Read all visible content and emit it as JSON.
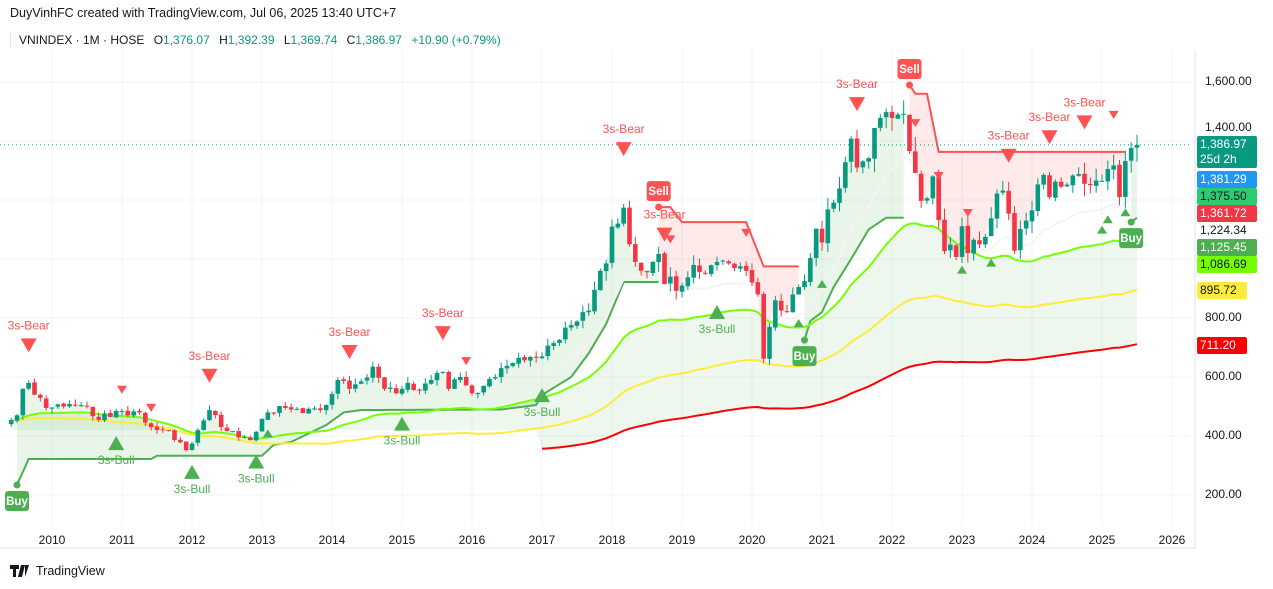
{
  "header": {
    "credit": "DuyVinhFC created with TradingView.com, Jul 06, 2025 13:40 UTC+7",
    "symbol": "VNINDEX · 1M · HOSE",
    "open_label": "O",
    "open": "1,376.07",
    "high_label": "H",
    "high": "1,392.39",
    "low_label": "L",
    "low": "1,369.74",
    "close_label": "C",
    "close": "1,386.97",
    "change": "+10.90 (+0.79%)"
  },
  "price_axis": {
    "ticks": [
      "1,600.00",
      "1,400.00",
      "800.00",
      "600.00",
      "400.00",
      "200.00"
    ],
    "tags": [
      {
        "value": "1,386.97",
        "sub": "25d 2h",
        "color": "#089981",
        "text": "#ffffff"
      },
      {
        "value": "1,381.29",
        "color": "#2196f3",
        "text": "#ffffff"
      },
      {
        "value": "1,375.50",
        "color": "#2ecc71",
        "text": "#131722"
      },
      {
        "value": "1,361.72",
        "color": "#f23645",
        "text": "#ffffff"
      },
      {
        "value": "1,224.34",
        "color": "#ffffff",
        "text": "#131722"
      },
      {
        "value": "1,125.45",
        "color": "#4caf50",
        "text": "#ffffff"
      },
      {
        "value": "1,086.69",
        "color": "#76ff03",
        "text": "#131722"
      },
      {
        "value": "895.72",
        "color": "#ffeb3b",
        "text": "#131722"
      },
      {
        "value": "711.20",
        "color": "#ff0000",
        "text": "#ffffff"
      }
    ]
  },
  "footer": {
    "brand": "TradingView"
  },
  "chart_data": {
    "type": "candlestick",
    "title": "VNINDEX · 1M · HOSE",
    "xlabel": "",
    "ylabel": "",
    "ylim": [
      100,
      1700
    ],
    "x_ticks": [
      "2010",
      "2011",
      "2012",
      "2013",
      "2014",
      "2015",
      "2016",
      "2017",
      "2018",
      "2019",
      "2020",
      "2021",
      "2022",
      "2023",
      "2024",
      "2025",
      "2026"
    ],
    "y_ticks": [
      200,
      400,
      600,
      800,
      1400,
      1600
    ],
    "last_close": 1386.97,
    "colors": {
      "up": "#089981",
      "down": "#f23645",
      "bull": "#4caf50",
      "bear": "#ff5252"
    },
    "monthly_close": [
      [
        "2009-06",
        454
      ],
      [
        "2009-07",
        470
      ],
      [
        "2009-08",
        560
      ],
      [
        "2009-09",
        580
      ],
      [
        "2009-10",
        540
      ],
      [
        "2009-12",
        495
      ],
      [
        "2010-03",
        500
      ],
      [
        "2010-06",
        505
      ],
      [
        "2010-09",
        455
      ],
      [
        "2010-12",
        485
      ],
      [
        "2011-02",
        470
      ],
      [
        "2011-04",
        480
      ],
      [
        "2011-06",
        430
      ],
      [
        "2011-09",
        420
      ],
      [
        "2011-12",
        352
      ],
      [
        "2012-02",
        420
      ],
      [
        "2012-04",
        488
      ],
      [
        "2012-06",
        430
      ],
      [
        "2012-09",
        395
      ],
      [
        "2012-11",
        386
      ],
      [
        "2012-12",
        414
      ],
      [
        "2013-02",
        480
      ],
      [
        "2013-05",
        495
      ],
      [
        "2013-08",
        478
      ],
      [
        "2013-12",
        505
      ],
      [
        "2014-02",
        590
      ],
      [
        "2014-04",
        560
      ],
      [
        "2014-06",
        585
      ],
      [
        "2014-08",
        635
      ],
      [
        "2014-10",
        560
      ],
      [
        "2014-12",
        545
      ],
      [
        "2015-02",
        580
      ],
      [
        "2015-04",
        555
      ],
      [
        "2015-06",
        590
      ],
      [
        "2015-08",
        617
      ],
      [
        "2015-09",
        560
      ],
      [
        "2015-11",
        600
      ],
      [
        "2016-01",
        545
      ],
      [
        "2016-03",
        570
      ],
      [
        "2016-06",
        630
      ],
      [
        "2016-09",
        665
      ],
      [
        "2016-11",
        668
      ],
      [
        "2016-12",
        665
      ],
      [
        "2017-03",
        715
      ],
      [
        "2017-06",
        776
      ],
      [
        "2017-09",
        825
      ],
      [
        "2017-11",
        960
      ],
      [
        "2017-12",
        985
      ],
      [
        "2018-01",
        1110
      ],
      [
        "2018-02",
        1120
      ],
      [
        "2018-03",
        1174
      ],
      [
        "2018-04",
        1050
      ],
      [
        "2018-05",
        990
      ],
      [
        "2018-06",
        960
      ],
      [
        "2018-07",
        955
      ],
      [
        "2018-08",
        990
      ],
      [
        "2018-09",
        1017
      ],
      [
        "2018-10",
        915
      ],
      [
        "2018-11",
        940
      ],
      [
        "2018-12",
        892
      ],
      [
        "2019-01",
        910
      ],
      [
        "2019-03",
        980
      ],
      [
        "2019-05",
        950
      ],
      [
        "2019-07",
        990
      ],
      [
        "2019-09",
        985
      ],
      [
        "2019-11",
        975
      ],
      [
        "2019-12",
        960
      ],
      [
        "2020-01",
        920
      ],
      [
        "2020-02",
        880
      ],
      [
        "2020-03",
        662
      ],
      [
        "2020-04",
        770
      ],
      [
        "2020-05",
        860
      ],
      [
        "2020-06",
        825
      ],
      [
        "2020-07",
        820
      ],
      [
        "2020-08",
        880
      ],
      [
        "2020-09",
        905
      ],
      [
        "2020-10",
        925
      ],
      [
        "2020-11",
        1003
      ],
      [
        "2020-12",
        1103
      ],
      [
        "2021-01",
        1056
      ],
      [
        "2021-02",
        1168
      ],
      [
        "2021-03",
        1191
      ],
      [
        "2021-04",
        1239
      ],
      [
        "2021-05",
        1328
      ],
      [
        "2021-06",
        1408
      ],
      [
        "2021-07",
        1310
      ],
      [
        "2021-08",
        1331
      ],
      [
        "2021-09",
        1342
      ],
      [
        "2021-10",
        1444
      ],
      [
        "2021-11",
        1478
      ],
      [
        "2021-12",
        1498
      ],
      [
        "2022-01",
        1478
      ],
      [
        "2022-02",
        1490
      ],
      [
        "2022-03",
        1492
      ],
      [
        "2022-04",
        1366
      ],
      [
        "2022-05",
        1292
      ],
      [
        "2022-06",
        1197
      ],
      [
        "2022-07",
        1206
      ],
      [
        "2022-08",
        1280
      ],
      [
        "2022-09",
        1132
      ],
      [
        "2022-10",
        1027
      ],
      [
        "2022-11",
        1049
      ],
      [
        "2022-12",
        1007
      ],
      [
        "2023-01",
        1111
      ],
      [
        "2023-02",
        1020
      ],
      [
        "2023-03",
        1065
      ],
      [
        "2023-04",
        1050
      ],
      [
        "2023-05",
        1075
      ],
      [
        "2023-06",
        1138
      ],
      [
        "2023-07",
        1222
      ],
      [
        "2023-08",
        1232
      ],
      [
        "2023-09",
        1154
      ],
      [
        "2023-10",
        1028
      ],
      [
        "2023-11",
        1102
      ],
      [
        "2023-12",
        1130
      ],
      [
        "2024-01",
        1165
      ],
      [
        "2024-02",
        1253
      ],
      [
        "2024-03",
        1285
      ],
      [
        "2024-04",
        1210
      ],
      [
        "2024-05",
        1262
      ],
      [
        "2024-06",
        1245
      ],
      [
        "2024-07",
        1252
      ],
      [
        "2024-08",
        1283
      ],
      [
        "2024-09",
        1288
      ],
      [
        "2024-10",
        1255
      ],
      [
        "2024-11",
        1250
      ],
      [
        "2024-12",
        1266
      ],
      [
        "2025-01",
        1265
      ],
      [
        "2025-02",
        1305
      ],
      [
        "2025-03",
        1317
      ],
      [
        "2025-04",
        1210
      ],
      [
        "2025-05",
        1332
      ],
      [
        "2025-06",
        1376
      ],
      [
        "2025-07",
        1387
      ]
    ],
    "trail_segments": [
      {
        "side": "bull",
        "points": [
          [
            "2009-07",
            234
          ],
          [
            "2009-09",
            322
          ],
          [
            "2011-06",
            322
          ],
          [
            "2011-07",
            333
          ],
          [
            "2013-01",
            333
          ],
          [
            "2013-03",
            370
          ],
          [
            "2013-06",
            380
          ],
          [
            "2013-12",
            437
          ],
          [
            "2014-03",
            480
          ],
          [
            "2014-06",
            488
          ],
          [
            "2016-06",
            490
          ],
          [
            "2016-12",
            505
          ],
          [
            "2017-01",
            539
          ],
          [
            "2017-06",
            600
          ],
          [
            "2017-09",
            680
          ],
          [
            "2017-12",
            780
          ],
          [
            "2018-03",
            922
          ],
          [
            "2018-09",
            922
          ]
        ]
      },
      {
        "side": "bear",
        "points": [
          [
            "2018-09",
            1176
          ],
          [
            "2018-11",
            1176
          ],
          [
            "2019-01",
            1125
          ],
          [
            "2019-12",
            1125
          ],
          [
            "2020-03",
            975
          ],
          [
            "2020-09",
            975
          ]
        ]
      },
      {
        "side": "bull",
        "points": [
          [
            "2020-10",
            725
          ],
          [
            "2020-11",
            790
          ],
          [
            "2021-01",
            820
          ],
          [
            "2021-03",
            905
          ],
          [
            "2021-06",
            1000
          ],
          [
            "2021-09",
            1100
          ],
          [
            "2021-12",
            1140
          ],
          [
            "2022-03",
            1140
          ]
        ]
      },
      {
        "side": "bear",
        "points": [
          [
            "2022-04",
            1590
          ],
          [
            "2022-05",
            1560
          ],
          [
            "2022-07",
            1560
          ],
          [
            "2022-09",
            1363
          ],
          [
            "2025-05",
            1363
          ]
        ]
      },
      {
        "side": "bull",
        "points": [
          [
            "2025-06",
            1125
          ],
          [
            "2025-07",
            1140
          ]
        ]
      }
    ],
    "moving_averages": [
      {
        "name": "MA white",
        "length": 20,
        "color": "#f4f4f4",
        "from": "2017-01",
        "last": 1224.34
      },
      {
        "name": "MA lime",
        "length": 50,
        "color": "#76ff03",
        "from": "2009-06",
        "last": 1086.69
      },
      {
        "name": "MA yellow",
        "length": 100,
        "color": "#ffeb3b",
        "from": "2009-06",
        "last": 895.72
      },
      {
        "name": "MA red",
        "length": 200,
        "color": "#ff0000",
        "from": "2017-01",
        "last": 711.2
      }
    ],
    "signals": [
      {
        "date": "2009-07",
        "type": "buy",
        "label": "Buy"
      },
      {
        "date": "2009-09",
        "type": "bear",
        "label": "3s-Bear"
      },
      {
        "date": "2010-12",
        "type": "bull",
        "label": "3s-Bull"
      },
      {
        "date": "2011-01",
        "type": "bear-small",
        "label": ""
      },
      {
        "date": "2011-06",
        "type": "bear-small",
        "label": ""
      },
      {
        "date": "2012-01",
        "type": "bull",
        "label": "3s-Bull"
      },
      {
        "date": "2012-04",
        "type": "bear",
        "label": "3s-Bear"
      },
      {
        "date": "2012-12",
        "type": "bull",
        "label": "3s-Bull"
      },
      {
        "date": "2013-02",
        "type": "bull-small",
        "label": ""
      },
      {
        "date": "2014-04",
        "type": "bear",
        "label": "3s-Bear"
      },
      {
        "date": "2015-01",
        "type": "bull",
        "label": "3s-Bull"
      },
      {
        "date": "2015-08",
        "type": "bear",
        "label": "3s-Bear"
      },
      {
        "date": "2015-12",
        "type": "bear-small",
        "label": ""
      },
      {
        "date": "2017-01",
        "type": "bull",
        "label": "3s-Bull"
      },
      {
        "date": "2018-03",
        "type": "bear",
        "label": "3s-Bear"
      },
      {
        "date": "2018-09",
        "type": "sell",
        "label": "Sell"
      },
      {
        "date": "2018-10",
        "type": "bear",
        "label": "3s-Bear"
      },
      {
        "date": "2018-11",
        "type": "bear-small",
        "label": ""
      },
      {
        "date": "2019-07",
        "type": "bull",
        "label": "3s-Bull"
      },
      {
        "date": "2019-12",
        "type": "bear-small",
        "label": ""
      },
      {
        "date": "2020-09",
        "type": "bull-small",
        "label": ""
      },
      {
        "date": "2020-10",
        "type": "buy",
        "label": "Buy"
      },
      {
        "date": "2021-01",
        "type": "bull-small",
        "label": ""
      },
      {
        "date": "2021-07",
        "type": "bear",
        "label": "3s-Bear"
      },
      {
        "date": "2022-04",
        "type": "sell",
        "label": "Sell"
      },
      {
        "date": "2022-05",
        "type": "bear-small",
        "label": ""
      },
      {
        "date": "2022-09",
        "type": "bear-small",
        "label": ""
      },
      {
        "date": "2023-01",
        "type": "bull-small",
        "label": ""
      },
      {
        "date": "2023-02",
        "type": "bear-small",
        "label": ""
      },
      {
        "date": "2023-06",
        "type": "bull-small",
        "label": ""
      },
      {
        "date": "2023-09",
        "type": "bear",
        "label": "3s-Bear"
      },
      {
        "date": "2024-04",
        "type": "bear",
        "label": "3s-Bear"
      },
      {
        "date": "2024-10",
        "type": "bear",
        "label": "3s-Bear"
      },
      {
        "date": "2025-01",
        "type": "bull-small",
        "label": ""
      },
      {
        "date": "2025-02",
        "type": "bull-small",
        "label": ""
      },
      {
        "date": "2025-03",
        "type": "bear-small",
        "label": ""
      },
      {
        "date": "2025-05",
        "type": "bull-small",
        "label": ""
      },
      {
        "date": "2025-06",
        "type": "buy",
        "label": "Buy"
      }
    ]
  }
}
